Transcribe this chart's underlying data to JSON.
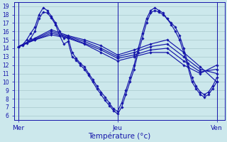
{
  "xlabel": "Température (°c)",
  "bg_color": "#cce8ec",
  "grid_color": "#a8c8cc",
  "line_color": "#1515aa",
  "marker": "D",
  "markersize": 1.8,
  "linewidth": 0.85,
  "ylim": [
    5.5,
    19.5
  ],
  "yticks": [
    6,
    7,
    8,
    9,
    10,
    11,
    12,
    13,
    14,
    15,
    16,
    17,
    18,
    19
  ],
  "xtick_positions": [
    0,
    24,
    48
  ],
  "xtick_labels": [
    "Mer",
    "Jeu",
    "Ven"
  ],
  "xlim": [
    -1,
    50
  ],
  "line1_x": [
    0,
    1,
    2,
    3,
    4,
    5,
    6,
    7,
    8,
    9,
    10,
    11,
    12,
    13,
    14,
    15,
    16,
    17,
    18,
    19,
    20,
    21,
    22,
    23,
    24,
    25,
    26,
    27,
    28,
    29,
    30,
    31,
    32,
    33,
    34,
    35,
    36,
    37,
    38,
    39,
    40,
    41,
    42,
    43,
    44,
    45,
    46,
    47,
    48
  ],
  "line1_y": [
    14.2,
    14.3,
    14.6,
    15.2,
    16.0,
    17.5,
    18.3,
    18.2,
    17.6,
    16.8,
    15.5,
    14.5,
    14.8,
    13.0,
    12.6,
    12.0,
    11.5,
    10.8,
    10.0,
    9.2,
    8.5,
    7.8,
    7.2,
    6.6,
    6.2,
    7.0,
    8.5,
    10.0,
    11.5,
    13.5,
    15.2,
    17.0,
    18.2,
    18.5,
    18.3,
    18.0,
    17.5,
    16.8,
    16.0,
    15.0,
    13.5,
    11.8,
    10.0,
    9.2,
    8.5,
    8.2,
    8.5,
    9.2,
    10.0
  ],
  "line2_x": [
    0,
    1,
    2,
    3,
    4,
    5,
    6,
    7,
    8,
    9,
    10,
    11,
    12,
    13,
    14,
    15,
    16,
    17,
    18,
    19,
    20,
    21,
    22,
    23,
    24,
    25,
    26,
    27,
    28,
    29,
    30,
    31,
    32,
    33,
    34,
    35,
    36,
    37,
    38,
    39,
    40,
    41,
    42,
    43,
    44,
    45,
    46,
    47,
    48
  ],
  "line2_y": [
    14.2,
    14.4,
    15.0,
    15.8,
    16.5,
    18.0,
    18.8,
    18.5,
    17.8,
    17.0,
    16.0,
    15.2,
    15.3,
    13.5,
    12.8,
    12.2,
    11.8,
    11.0,
    10.3,
    9.5,
    8.8,
    8.2,
    7.5,
    6.8,
    6.5,
    7.5,
    9.0,
    10.5,
    12.0,
    14.0,
    15.8,
    17.5,
    18.5,
    18.8,
    18.5,
    18.2,
    17.5,
    17.0,
    16.5,
    15.5,
    14.0,
    12.2,
    10.5,
    9.5,
    8.8,
    8.5,
    8.8,
    9.5,
    10.5
  ],
  "diag_lines": [
    {
      "x": [
        0,
        4,
        8,
        12,
        16,
        20,
        24,
        28,
        32,
        36,
        40,
        44,
        48
      ],
      "y": [
        14.2,
        15.2,
        16.2,
        15.5,
        15.0,
        14.3,
        13.2,
        13.8,
        14.5,
        15.0,
        13.5,
        11.8,
        10.0
      ]
    },
    {
      "x": [
        0,
        4,
        8,
        12,
        16,
        20,
        24,
        28,
        32,
        36,
        40,
        44,
        48
      ],
      "y": [
        14.2,
        15.1,
        16.0,
        15.4,
        14.8,
        14.0,
        13.0,
        13.5,
        14.2,
        14.5,
        13.0,
        11.5,
        11.0
      ]
    },
    {
      "x": [
        0,
        4,
        8,
        12,
        16,
        20,
        24,
        28,
        32,
        36,
        40,
        44,
        48
      ],
      "y": [
        14.2,
        15.0,
        15.8,
        15.3,
        14.6,
        13.8,
        12.8,
        13.2,
        13.8,
        14.0,
        12.5,
        11.2,
        11.5
      ]
    },
    {
      "x": [
        0,
        4,
        8,
        12,
        16,
        20,
        24,
        28,
        32,
        36,
        40,
        44,
        48
      ],
      "y": [
        14.2,
        15.0,
        15.6,
        15.2,
        14.5,
        13.5,
        12.5,
        13.0,
        13.5,
        13.5,
        12.0,
        11.0,
        12.0
      ]
    }
  ]
}
